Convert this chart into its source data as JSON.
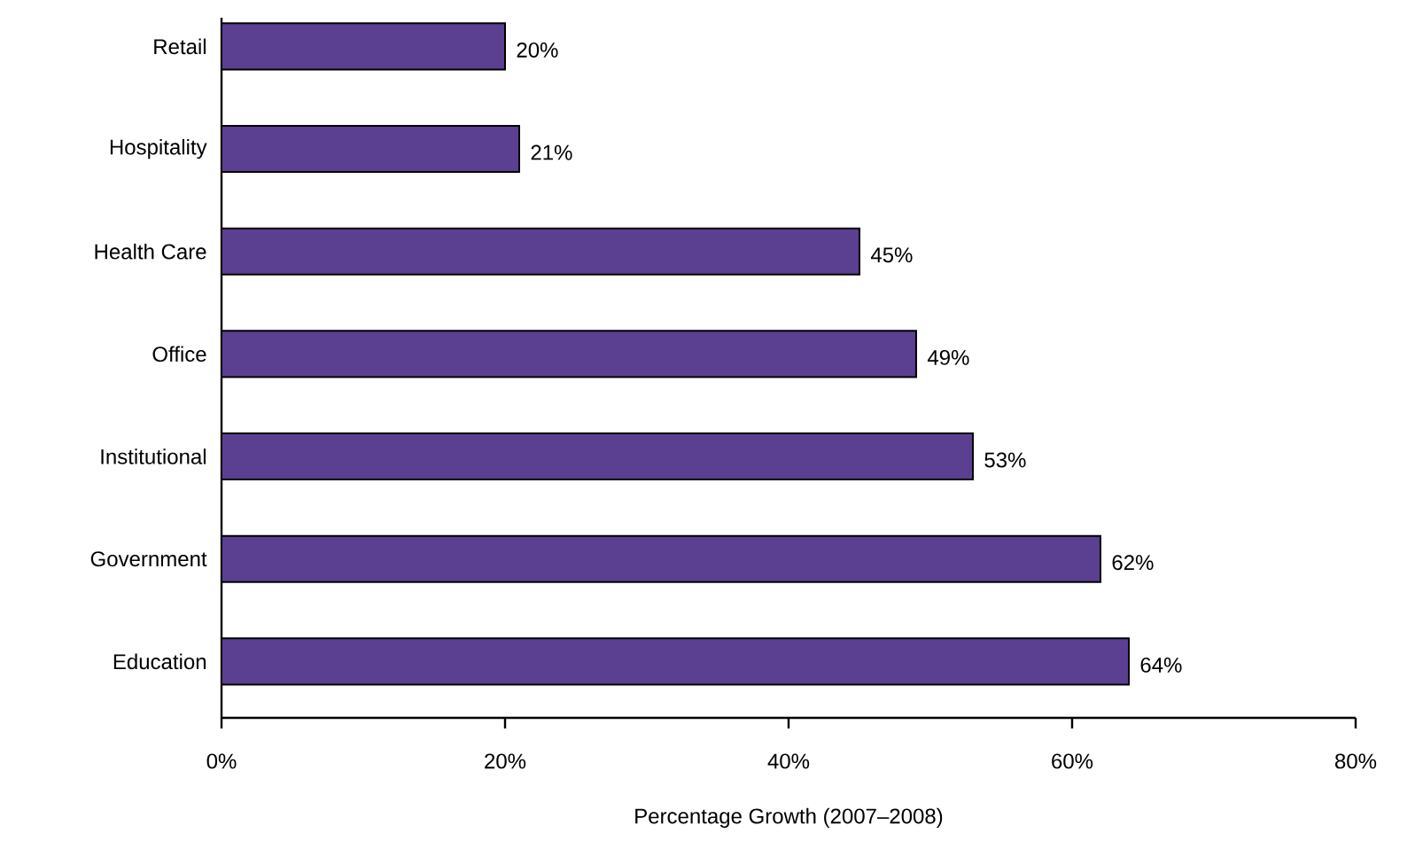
{
  "chart_data": {
    "type": "bar",
    "orientation": "horizontal",
    "categories": [
      "Retail",
      "Hospitality",
      "Health Care",
      "Office",
      "Institutional",
      "Government",
      "Education"
    ],
    "values": [
      20,
      21,
      45,
      49,
      53,
      62,
      64
    ],
    "value_labels": [
      "20%",
      "21%",
      "45%",
      "49%",
      "53%",
      "62%",
      "64%"
    ],
    "color": "#5b3f91",
    "xlim": [
      0,
      80
    ],
    "xticks": [
      {
        "value": 0,
        "label": "0%"
      },
      {
        "value": 20,
        "label": "20%"
      },
      {
        "value": 40,
        "label": "40%"
      },
      {
        "value": 60,
        "label": "60%"
      },
      {
        "value": 80,
        "label": "80%"
      }
    ],
    "xlabel": "Percentage Growth (2007–2008)",
    "grid": false
  }
}
